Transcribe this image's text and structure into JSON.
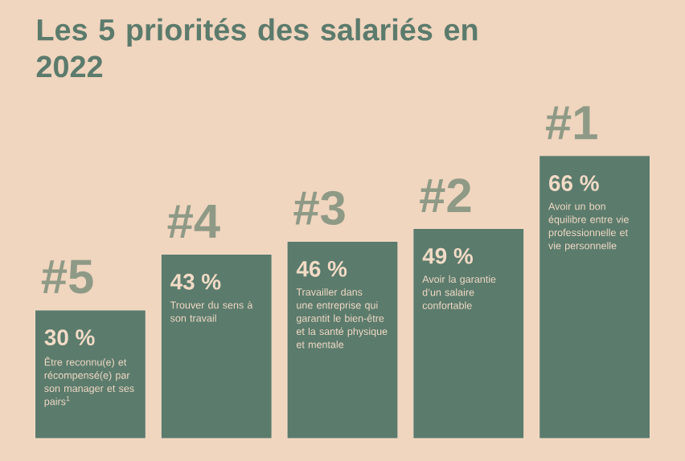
{
  "chart_data": {
    "type": "bar",
    "title": "Les 5 priorités des salariés en 2022",
    "categories": [
      "#5",
      "#4",
      "#3",
      "#2",
      "#1"
    ],
    "values": [
      30,
      43,
      46,
      49,
      66
    ],
    "value_labels": [
      "30 %",
      "43 %",
      "46 %",
      "49 %",
      "66 %"
    ],
    "color": "#5b7b6c",
    "annotations": [
      "Être reconnu(e) et récompensé(e) par son manager et ses pairs$^{1}$",
      "Trouver du sens à son travail",
      "Travailler dans une entreprise qui garantit le bien-être et la santé physique et mentale",
      "Avoir la garantie d’un salaire confortable",
      "Avoir un bon équilibre entre vie professionnelle et vie personnelle"
    ]
  }
}
